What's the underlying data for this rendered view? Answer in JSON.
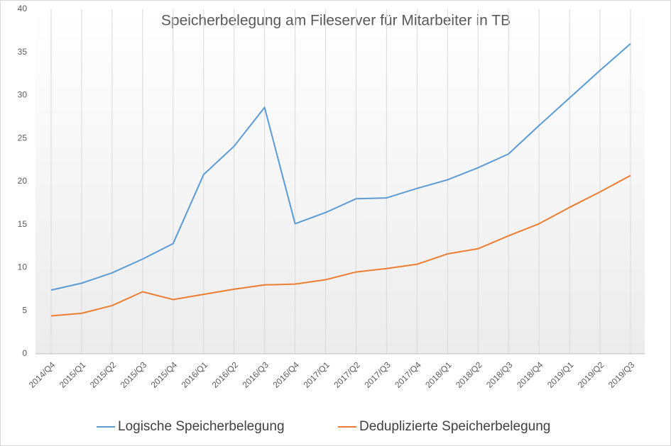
{
  "chart_data": {
    "type": "line",
    "title": "Speicherbelegung  am Fileserver  für Mitarbeiter  in TB",
    "categories": [
      "2014/Q4",
      "2015/Q1",
      "2015/Q2",
      "2015/Q3",
      "2015/Q4",
      "2016/Q1",
      "2016/Q2",
      "2016/Q3",
      "2016/Q4",
      "2017/Q1",
      "2017/Q2",
      "2017/Q3",
      "2017/Q4",
      "2018/Q1",
      "2018/Q2",
      "2018/Q3",
      "2018/Q4",
      "2019/Q1",
      "2019/Q2",
      "2019/Q3"
    ],
    "series": [
      {
        "name": "Logische Speicherbelegung",
        "color": "#5b9bd5",
        "values": [
          7.4,
          8.2,
          9.4,
          11.0,
          12.8,
          20.8,
          24.1,
          28.6,
          15.1,
          16.4,
          18.0,
          18.1,
          19.2,
          20.2,
          21.6,
          23.2,
          26.5,
          29.7,
          32.9,
          36.0
        ]
      },
      {
        "name": "Deduplizierte Speicherbelegung",
        "color": "#ed7d31",
        "values": [
          4.4,
          4.7,
          5.6,
          7.2,
          6.3,
          6.9,
          7.5,
          8.0,
          8.1,
          8.6,
          9.5,
          9.9,
          10.4,
          11.6,
          12.2,
          13.7,
          15.1,
          17.0,
          18.8,
          20.7
        ]
      }
    ],
    "ylim": [
      0,
      40
    ],
    "yticks": [
      0,
      5,
      10,
      15,
      20,
      25,
      30,
      35,
      40
    ],
    "grid": "x",
    "legend": "bottom"
  }
}
